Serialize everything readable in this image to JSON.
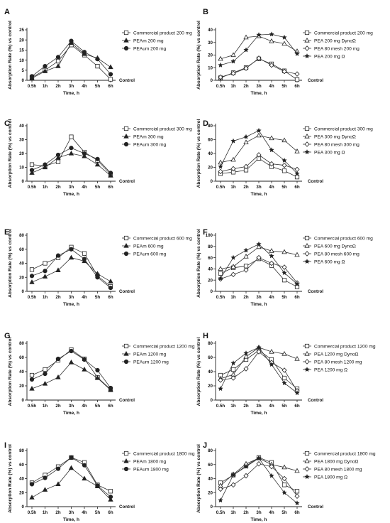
{
  "figure": {
    "x_categories": [
      "0.5h",
      "1h",
      "2h",
      "3h",
      "4h",
      "5h",
      "6h"
    ],
    "xlabel": "Time, h",
    "ylabel": "Absorption Rate (%) vs control",
    "control_label": "Control"
  },
  "chart_data": [
    {
      "panel": "A",
      "type": "line",
      "ylim": [
        0,
        25
      ],
      "yticks": [
        0,
        5,
        10,
        15,
        20,
        25
      ],
      "categories": [
        "0.5h",
        "1h",
        "2h",
        "3h",
        "4h",
        "5h",
        "6h"
      ],
      "series": [
        {
          "name": "Commercial product 200 mg",
          "marker": "square-open",
          "values": [
            1.5,
            5,
            9.5,
            17.5,
            12.5,
            7,
            0.5
          ]
        },
        {
          "name": "PEAm 200 mg",
          "marker": "triangle-filled",
          "values": [
            1,
            4.5,
            7,
            18.5,
            13,
            11,
            6.5
          ]
        },
        {
          "name": "PEAum 200 mg",
          "marker": "circle-filled",
          "values": [
            2,
            7,
            11.5,
            19.5,
            14,
            10.5,
            3
          ]
        }
      ]
    },
    {
      "panel": "B",
      "type": "line",
      "ylim": [
        0,
        40
      ],
      "yticks": [
        0,
        10,
        20,
        30,
        40
      ],
      "categories": [
        "0.5h",
        "1h",
        "2h",
        "3h",
        "4h",
        "5h",
        "6h"
      ],
      "series": [
        {
          "name": "Commercial product 200 mg",
          "marker": "square-open",
          "values": [
            2,
            6,
            10,
            17,
            13,
            7.5,
            0.5
          ]
        },
        {
          "name": "PEA 200 mg DynoΩ",
          "marker": "triangle-open",
          "values": [
            17,
            20,
            34,
            35,
            31,
            29,
            23
          ]
        },
        {
          "name": "PEA 80 mesh 200 mg",
          "marker": "diamond-open",
          "values": [
            2.5,
            5.5,
            9.5,
            17.5,
            12,
            7,
            5
          ]
        },
        {
          "name": "PEA 200 mg Ω",
          "marker": "star-filled",
          "values": [
            12,
            15,
            24,
            36,
            36.5,
            34,
            21
          ]
        }
      ]
    },
    {
      "panel": "C",
      "type": "line",
      "ylim": [
        0,
        40
      ],
      "yticks": [
        0,
        10,
        20,
        30,
        40
      ],
      "categories": [
        "0.5h",
        "1h",
        "2h",
        "3h",
        "4h",
        "5h",
        "6h"
      ],
      "series": [
        {
          "name": "Commercial product 300 mg",
          "marker": "square-open",
          "values": [
            12,
            11,
            14,
            32,
            21,
            15,
            5
          ]
        },
        {
          "name": "PEAm 300 mg",
          "marker": "triangle-filled",
          "values": [
            6,
            10,
            17,
            20,
            18,
            12,
            4
          ]
        },
        {
          "name": "PEAum 300 mg",
          "marker": "circle-filled",
          "values": [
            8,
            12,
            19,
            24,
            20,
            16,
            6
          ]
        }
      ]
    },
    {
      "panel": "D",
      "type": "line",
      "ylim": [
        0,
        80
      ],
      "yticks": [
        0,
        20,
        40,
        60,
        80
      ],
      "categories": [
        "0.5h",
        "1h",
        "2h",
        "3h",
        "4h",
        "5h",
        "6h"
      ],
      "series": [
        {
          "name": "Commercial product 300 mg",
          "marker": "square-open",
          "values": [
            11,
            13,
            16,
            33,
            21,
            15,
            6
          ]
        },
        {
          "name": "PEA 300 mg DynoΩ",
          "marker": "triangle-open",
          "values": [
            27,
            31,
            56,
            66,
            62,
            59,
            43
          ]
        },
        {
          "name": "PEA 80 mesh 300 mg",
          "marker": "diamond-open",
          "values": [
            14,
            18,
            21,
            38,
            25,
            23,
            17
          ]
        },
        {
          "name": "PEA 300 mg Ω",
          "marker": "star-filled",
          "values": [
            21,
            58,
            64,
            73,
            45,
            30,
            11
          ]
        }
      ]
    },
    {
      "panel": "E",
      "type": "line",
      "ylim": [
        0,
        80
      ],
      "yticks": [
        0,
        20,
        40,
        60,
        80
      ],
      "categories": [
        "0.5h",
        "1h",
        "2h",
        "3h",
        "4h",
        "5h",
        "6h"
      ],
      "series": [
        {
          "name": "Commercial product 600 mg",
          "marker": "square-open",
          "values": [
            31,
            40,
            48,
            63,
            54,
            22,
            7
          ]
        },
        {
          "name": "PEAm 600 mg",
          "marker": "triangle-filled",
          "values": [
            13,
            21,
            30,
            48,
            43,
            25,
            14
          ]
        },
        {
          "name": "PEAum 600 mg",
          "marker": "circle-filled",
          "values": [
            22,
            29,
            51,
            60,
            46,
            20,
            5
          ]
        }
      ]
    },
    {
      "panel": "F",
      "type": "line",
      "ylim": [
        0,
        100
      ],
      "yticks": [
        0,
        20,
        40,
        60,
        80,
        100
      ],
      "categories": [
        "0.5h",
        "1h",
        "2h",
        "3h",
        "4h",
        "5h",
        "6h"
      ],
      "series": [
        {
          "name": "Commercial product 600 mg",
          "marker": "square-open",
          "values": [
            32,
            42,
            45,
            58,
            46,
            20,
            8
          ]
        },
        {
          "name": "PEA 600 mg DynoΩ",
          "marker": "triangle-open",
          "values": [
            40,
            44,
            62,
            79,
            72,
            70,
            65
          ]
        },
        {
          "name": "PEA 80 mesh 600 mg",
          "marker": "diamond-open",
          "values": [
            22,
            30,
            38,
            60,
            50,
            43,
            15
          ]
        },
        {
          "name": "PEA 600 mg Ω",
          "marker": "star-filled",
          "values": [
            23,
            60,
            73,
            84,
            63,
            33,
            13
          ]
        }
      ]
    },
    {
      "panel": "G",
      "type": "line",
      "ylim": [
        0,
        80
      ],
      "yticks": [
        0,
        20,
        40,
        60,
        80
      ],
      "categories": [
        "0.5h",
        "1h",
        "2h",
        "3h",
        "4h",
        "5h",
        "6h"
      ],
      "series": [
        {
          "name": "Commercial product 1200 mg",
          "marker": "square-open",
          "values": [
            35,
            43,
            56,
            71,
            58,
            32,
            15
          ]
        },
        {
          "name": "PEAm 1200 mg",
          "marker": "triangle-filled",
          "values": [
            16,
            23,
            32,
            53,
            43,
            31,
            14
          ]
        },
        {
          "name": "PEAum 1200 mg",
          "marker": "circle-filled",
          "values": [
            29,
            37,
            58,
            69,
            57,
            42,
            17
          ]
        }
      ]
    },
    {
      "panel": "H",
      "type": "line",
      "ylim": [
        0,
        80
      ],
      "yticks": [
        0,
        20,
        40,
        60,
        80
      ],
      "categories": [
        "0.5h",
        "1h",
        "2h",
        "3h",
        "4h",
        "5h",
        "6h"
      ],
      "series": [
        {
          "name": "Commercial product 1200 mg",
          "marker": "square-open",
          "values": [
            35,
            43,
            57,
            70,
            57,
            31,
            16
          ]
        },
        {
          "name": "PEA 1200 mg DynoΩ",
          "marker": "triangle-open",
          "values": [
            30,
            36,
            61,
            74,
            68,
            65,
            58
          ]
        },
        {
          "name": "PEA 80 mesh 1200 mg",
          "marker": "diamond-open",
          "values": [
            28,
            31,
            44,
            68,
            53,
            42,
            13
          ]
        },
        {
          "name": "PEA 1200 mg Ω",
          "marker": "star-filled",
          "values": [
            16,
            52,
            66,
            74,
            50,
            24,
            10
          ]
        }
      ]
    },
    {
      "panel": "I",
      "type": "line",
      "ylim": [
        0,
        80
      ],
      "yticks": [
        0,
        20,
        40,
        60,
        80
      ],
      "categories": [
        "0.5h",
        "1h",
        "2h",
        "3h",
        "4h",
        "5h",
        "6h"
      ],
      "series": [
        {
          "name": "Commercial product 1800 mg",
          "marker": "square-open",
          "values": [
            34,
            45,
            57,
            70,
            63,
            31,
            22
          ]
        },
        {
          "name": "PEAm 1800 mg",
          "marker": "triangle-filled",
          "values": [
            13,
            24,
            32,
            55,
            40,
            29,
            10
          ]
        },
        {
          "name": "PEAum 1800 mg",
          "marker": "circle-filled",
          "values": [
            32,
            41,
            54,
            70,
            59,
            30,
            14
          ]
        }
      ]
    },
    {
      "panel": "J",
      "type": "line",
      "ylim": [
        0,
        80
      ],
      "yticks": [
        0,
        20,
        40,
        60,
        80
      ],
      "categories": [
        "0.5h",
        "1h",
        "2h",
        "3h",
        "4h",
        "5h",
        "6h"
      ],
      "series": [
        {
          "name": "Commercial product 1800 mg",
          "marker": "square-open",
          "values": [
            34,
            45,
            58,
            70,
            63,
            31,
            22
          ]
        },
        {
          "name": "PEA 1800 mg DynoΩ",
          "marker": "triangle-open",
          "values": [
            30,
            46,
            61,
            69,
            60,
            56,
            51
          ]
        },
        {
          "name": "PEA 80 mesh 1800 mg",
          "marker": "diamond-open",
          "values": [
            25,
            31,
            44,
            61,
            57,
            40,
            15
          ]
        },
        {
          "name": "PEA 1800 mg Ω",
          "marker": "star-filled",
          "values": [
            9,
            45,
            57,
            69,
            44,
            20,
            5
          ]
        }
      ]
    }
  ]
}
